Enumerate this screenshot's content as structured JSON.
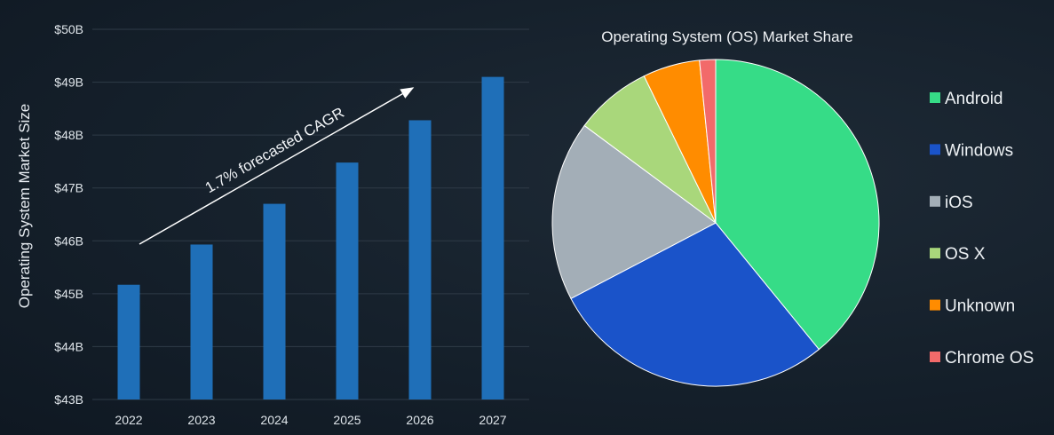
{
  "chart_data": [
    {
      "type": "bar",
      "ylabel": "Operating System Market Size",
      "categories": [
        "2022",
        "2023",
        "2024",
        "2025",
        "2026",
        "2027"
      ],
      "values": [
        45.17,
        45.93,
        46.7,
        47.48,
        48.28,
        49.1
      ],
      "ylim": [
        43,
        50
      ],
      "yticks": [
        "$43B",
        "$44B",
        "$45B",
        "$46B",
        "$47B",
        "$48B",
        "$49B",
        "$50B"
      ],
      "grid": true,
      "bar_color": "#1f6fb8",
      "annotation": "1.7% forecasted CAGR"
    },
    {
      "type": "pie",
      "title": "Operating System (OS) Market Share",
      "legend_position": "right",
      "labels": [
        "Android",
        "Windows",
        "iOS",
        "OS X",
        "Unknown",
        "Chrome OS"
      ],
      "values": [
        39.5,
        28.5,
        18.0,
        7.7,
        5.7,
        1.6
      ],
      "colors": [
        "#36dc87",
        "#1a53c9",
        "#a3aeb7",
        "#a9d77b",
        "#ff8c00",
        "#f26a6a"
      ]
    }
  ]
}
